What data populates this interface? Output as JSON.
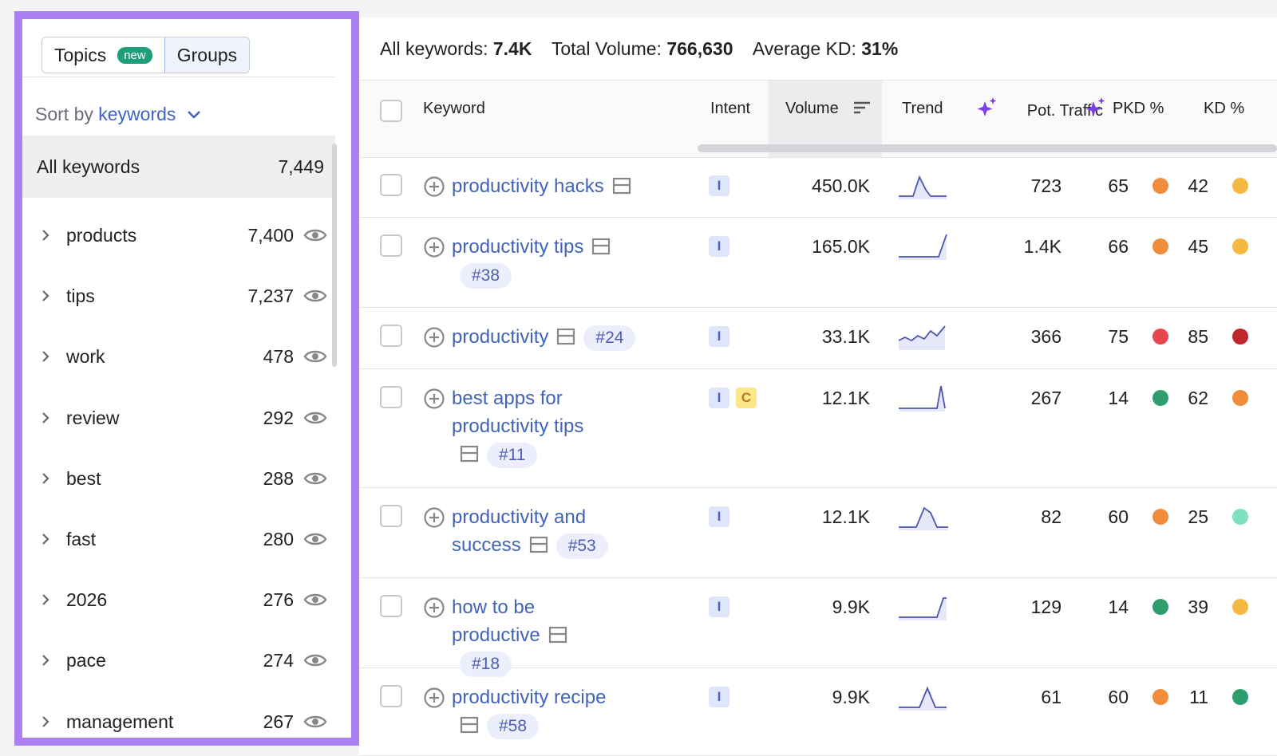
{
  "sidebar": {
    "tabs": [
      "Topics",
      "Groups"
    ],
    "new_badge": "new",
    "sort_label": "Sort by",
    "sort_value": "keywords",
    "all": {
      "label": "All keywords",
      "count": "7,449"
    },
    "groups": [
      {
        "name": "products",
        "count": "7,400"
      },
      {
        "name": "tips",
        "count": "7,237"
      },
      {
        "name": "work",
        "count": 478
      },
      {
        "name": "review",
        "count": 292
      },
      {
        "name": "best",
        "count": 288
      },
      {
        "name": "fast",
        "count": 280
      },
      {
        "name": "2026",
        "count": 276
      },
      {
        "name": "pace",
        "count": 274
      },
      {
        "name": "management",
        "count": 267
      }
    ]
  },
  "summary": {
    "keywords_label": "All keywords:",
    "keywords": "7.4K",
    "volume_label": "Total Volume:",
    "volume": "766,630",
    "kd_label": "Average KD:",
    "kd": "31%"
  },
  "table": {
    "headers": [
      "Keyword",
      "Intent",
      "Volume",
      "Trend",
      "Pot. Traffic",
      "PKD %",
      "KD %"
    ],
    "rows": [
      {
        "keyword": "productivity hacks",
        "tag": null,
        "intents": [
          "I"
        ],
        "volume": "450.0K",
        "traffic": 723,
        "pkd": 65,
        "pkd_color": "#f08c3a",
        "kd": 42,
        "kd_color": "#f5b942"
      },
      {
        "keyword": "productivity tips",
        "tag": "#38",
        "intents": [
          "I"
        ],
        "volume": "165.0K",
        "traffic": "1.4K",
        "pkd": 66,
        "pkd_color": "#f08c3a",
        "kd": 45,
        "kd_color": "#f5b942"
      },
      {
        "keyword": "productivity",
        "tag": "#24",
        "intents": [
          "I"
        ],
        "volume": "33.1K",
        "traffic": 366,
        "pkd": 75,
        "pkd_color": "#e8464f",
        "kd": 85,
        "kd_color": "#c0272d"
      },
      {
        "keyword": "best apps for productivity tips",
        "tag": "#11",
        "intents": [
          "I",
          "C"
        ],
        "volume": "12.1K",
        "traffic": 267,
        "pkd": 14,
        "pkd_color": "#2e9e6e",
        "kd": 62,
        "kd_color": "#f08c3a"
      },
      {
        "keyword": "productivity and success",
        "tag": "#53",
        "intents": [
          "I"
        ],
        "volume": "12.1K",
        "traffic": 82,
        "pkd": 60,
        "pkd_color": "#f08c3a",
        "kd": 25,
        "kd_color": "#7ee0c0"
      },
      {
        "keyword": "how to be productive",
        "tag": "#18",
        "intents": [
          "I"
        ],
        "volume": "9.9K",
        "traffic": 129,
        "pkd": 14,
        "pkd_color": "#2e9e6e",
        "kd": 39,
        "kd_color": "#f5b942"
      },
      {
        "keyword": "productivity recipe",
        "tag": "#58",
        "intents": [
          "I"
        ],
        "volume": "9.9K",
        "traffic": 61,
        "pkd": 60,
        "pkd_color": "#f08c3a",
        "kd": 11,
        "kd_color": "#2e9e6e"
      }
    ]
  }
}
